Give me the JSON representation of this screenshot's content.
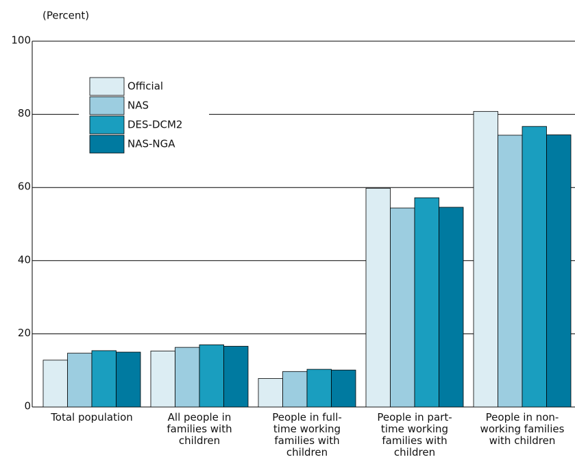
{
  "chart_data": {
    "type": "bar",
    "y_label": "(Percent)",
    "categories": [
      "Total population",
      "All people in families with children",
      "People in full-time working families with children",
      "People in part-time working families with children",
      "People in non-working families with children"
    ],
    "series": [
      {
        "name": "Official",
        "color": "#dcedf3",
        "values": [
          12.8,
          15.3,
          7.8,
          59.8,
          80.8
        ]
      },
      {
        "name": "NAS",
        "color": "#9ccde0",
        "values": [
          14.7,
          16.3,
          9.7,
          54.4,
          74.3
        ]
      },
      {
        "name": "DES-DCM2",
        "color": "#1a9ebf",
        "values": [
          15.4,
          17.0,
          10.3,
          57.2,
          76.7
        ]
      },
      {
        "name": "NAS-NGA",
        "color": "#007aa0",
        "values": [
          15.0,
          16.6,
          10.1,
          54.6,
          74.4
        ]
      }
    ],
    "ylim": [
      0,
      100
    ],
    "yticks": [
      0,
      20,
      40,
      60,
      80,
      100
    ],
    "grid": true
  }
}
